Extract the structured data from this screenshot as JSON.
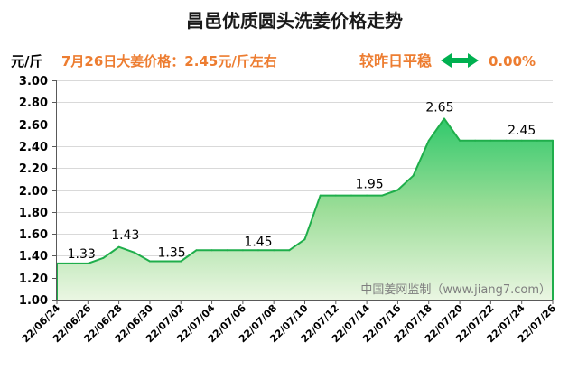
{
  "headline": "7月26日大姜价格：2.45元/斤左右",
  "change": {
    "status": "较昨日平稳",
    "icon": "double-arrow-icon",
    "percent": "0.00%"
  },
  "watermark": "中国姜网监制（www.jiang7.com）",
  "colors": {
    "accent": "#ED7D31",
    "arrow": "#00B050",
    "line": "#1FAE4B",
    "area_top": "#2DC86A",
    "area_mid": "#9BDD97",
    "area_bottom": "#EAF6E2",
    "grid": "#D9D9D9",
    "axis": "#595959",
    "watermark": "#7F7F7F"
  },
  "chart_data": {
    "type": "area",
    "title": "昌邑优质圆头洗姜价格走势",
    "ylabel": "元/斤",
    "ylim": [
      1.0,
      3.0
    ],
    "grid": true,
    "yticks": [
      "3.00",
      "2.80",
      "2.60",
      "2.40",
      "2.20",
      "2.00",
      "1.80",
      "1.60",
      "1.40",
      "1.20",
      "1.00"
    ],
    "x": [
      0,
      1,
      2,
      3,
      4,
      5,
      6,
      7,
      8,
      9,
      10,
      11,
      12,
      13,
      14,
      15,
      16,
      17,
      18,
      19,
      20,
      21,
      22,
      23,
      24,
      25,
      26,
      27,
      28,
      29,
      30,
      31,
      32
    ],
    "values": [
      1.33,
      1.33,
      1.33,
      1.38,
      1.48,
      1.43,
      1.35,
      1.35,
      1.35,
      1.45,
      1.45,
      1.45,
      1.45,
      1.45,
      1.45,
      1.45,
      1.55,
      1.95,
      1.95,
      1.95,
      1.95,
      1.95,
      2.0,
      2.13,
      2.45,
      2.65,
      2.45,
      2.45,
      2.45,
      2.45,
      2.45,
      2.45,
      2.45
    ],
    "xticks": [
      {
        "day": 0,
        "label": "22/06/24"
      },
      {
        "day": 2,
        "label": "22/06/26"
      },
      {
        "day": 4,
        "label": "22/06/28"
      },
      {
        "day": 6,
        "label": "22/06/30"
      },
      {
        "day": 8,
        "label": "22/07/02"
      },
      {
        "day": 10,
        "label": "22/07/04"
      },
      {
        "day": 12,
        "label": "22/07/06"
      },
      {
        "day": 14,
        "label": "22/07/08"
      },
      {
        "day": 16,
        "label": "22/07/10"
      },
      {
        "day": 18,
        "label": "22/07/12"
      },
      {
        "day": 20,
        "label": "22/07/14"
      },
      {
        "day": 22,
        "label": "22/07/16"
      },
      {
        "day": 24,
        "label": "22/07/18"
      },
      {
        "day": 26,
        "label": "22/07/20"
      },
      {
        "day": 28,
        "label": "22/07/22"
      },
      {
        "day": 30,
        "label": "22/07/24"
      },
      {
        "day": 32,
        "label": "22/07/26"
      }
    ],
    "annotations": [
      {
        "day": 1,
        "text": "1.33"
      },
      {
        "day": 5,
        "text": "1.43"
      },
      {
        "day": 7,
        "text": "1.35"
      },
      {
        "day": 13,
        "text": "1.45"
      },
      {
        "day": 20,
        "text": "1.95"
      },
      {
        "day": 25,
        "text": "2.65"
      },
      {
        "day": 30,
        "text": "2.45"
      }
    ]
  }
}
